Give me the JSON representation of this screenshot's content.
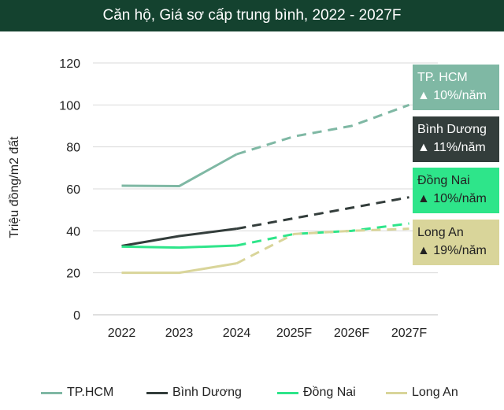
{
  "title": "Căn hộ, Giá sơ cấp trung bình, 2022 - 2027F",
  "colors": {
    "header_bg": "#14422f",
    "grid": "#d9d9d9"
  },
  "chart_data": {
    "type": "line",
    "title": "Căn hộ, Giá sơ cấp trung bình, 2022 - 2027F",
    "xlabel": "",
    "ylabel": "Triệu đồng/m2 đất",
    "categories": [
      "2022",
      "2023",
      "2024",
      "2025F",
      "2026F",
      "2027F"
    ],
    "ylim": [
      0,
      120
    ],
    "yticks": [
      0,
      20,
      40,
      60,
      80,
      100,
      120
    ],
    "grid": true,
    "legend_position": "bottom",
    "forecast_from_index": 2,
    "series": [
      {
        "name": "TP.HCM",
        "color": "#7fb8a4",
        "values": [
          61.5,
          61.3,
          76.5,
          85,
          90,
          100
        ]
      },
      {
        "name": "Bình Dương",
        "color": "#333d3b",
        "values": [
          32.8,
          37.5,
          41,
          46,
          51,
          56
        ]
      },
      {
        "name": "Đồng Nai",
        "color": "#2ee58a",
        "values": [
          32.5,
          32,
          33,
          38.5,
          40,
          43.5
        ]
      },
      {
        "name": "Long An",
        "color": "#d9d59a",
        "values": [
          20,
          20,
          24.5,
          38.5,
          40,
          41
        ]
      }
    ]
  },
  "annotations": [
    {
      "name": "TP. HCM",
      "growth": "▲ 10%/năm",
      "bg": "#7fb8a4",
      "fg": "#ffffff"
    },
    {
      "name": "Bình Dương",
      "growth": "▲ 11%/năm",
      "bg": "#333d3b",
      "fg": "#ffffff"
    },
    {
      "name": "Đồng Nai",
      "growth": "▲ 10%/năm",
      "bg": "#2ee58a",
      "fg": "#222222"
    },
    {
      "name": "Long An",
      "growth": "▲ 19%/năm",
      "bg": "#d9d59a",
      "fg": "#222222"
    }
  ]
}
